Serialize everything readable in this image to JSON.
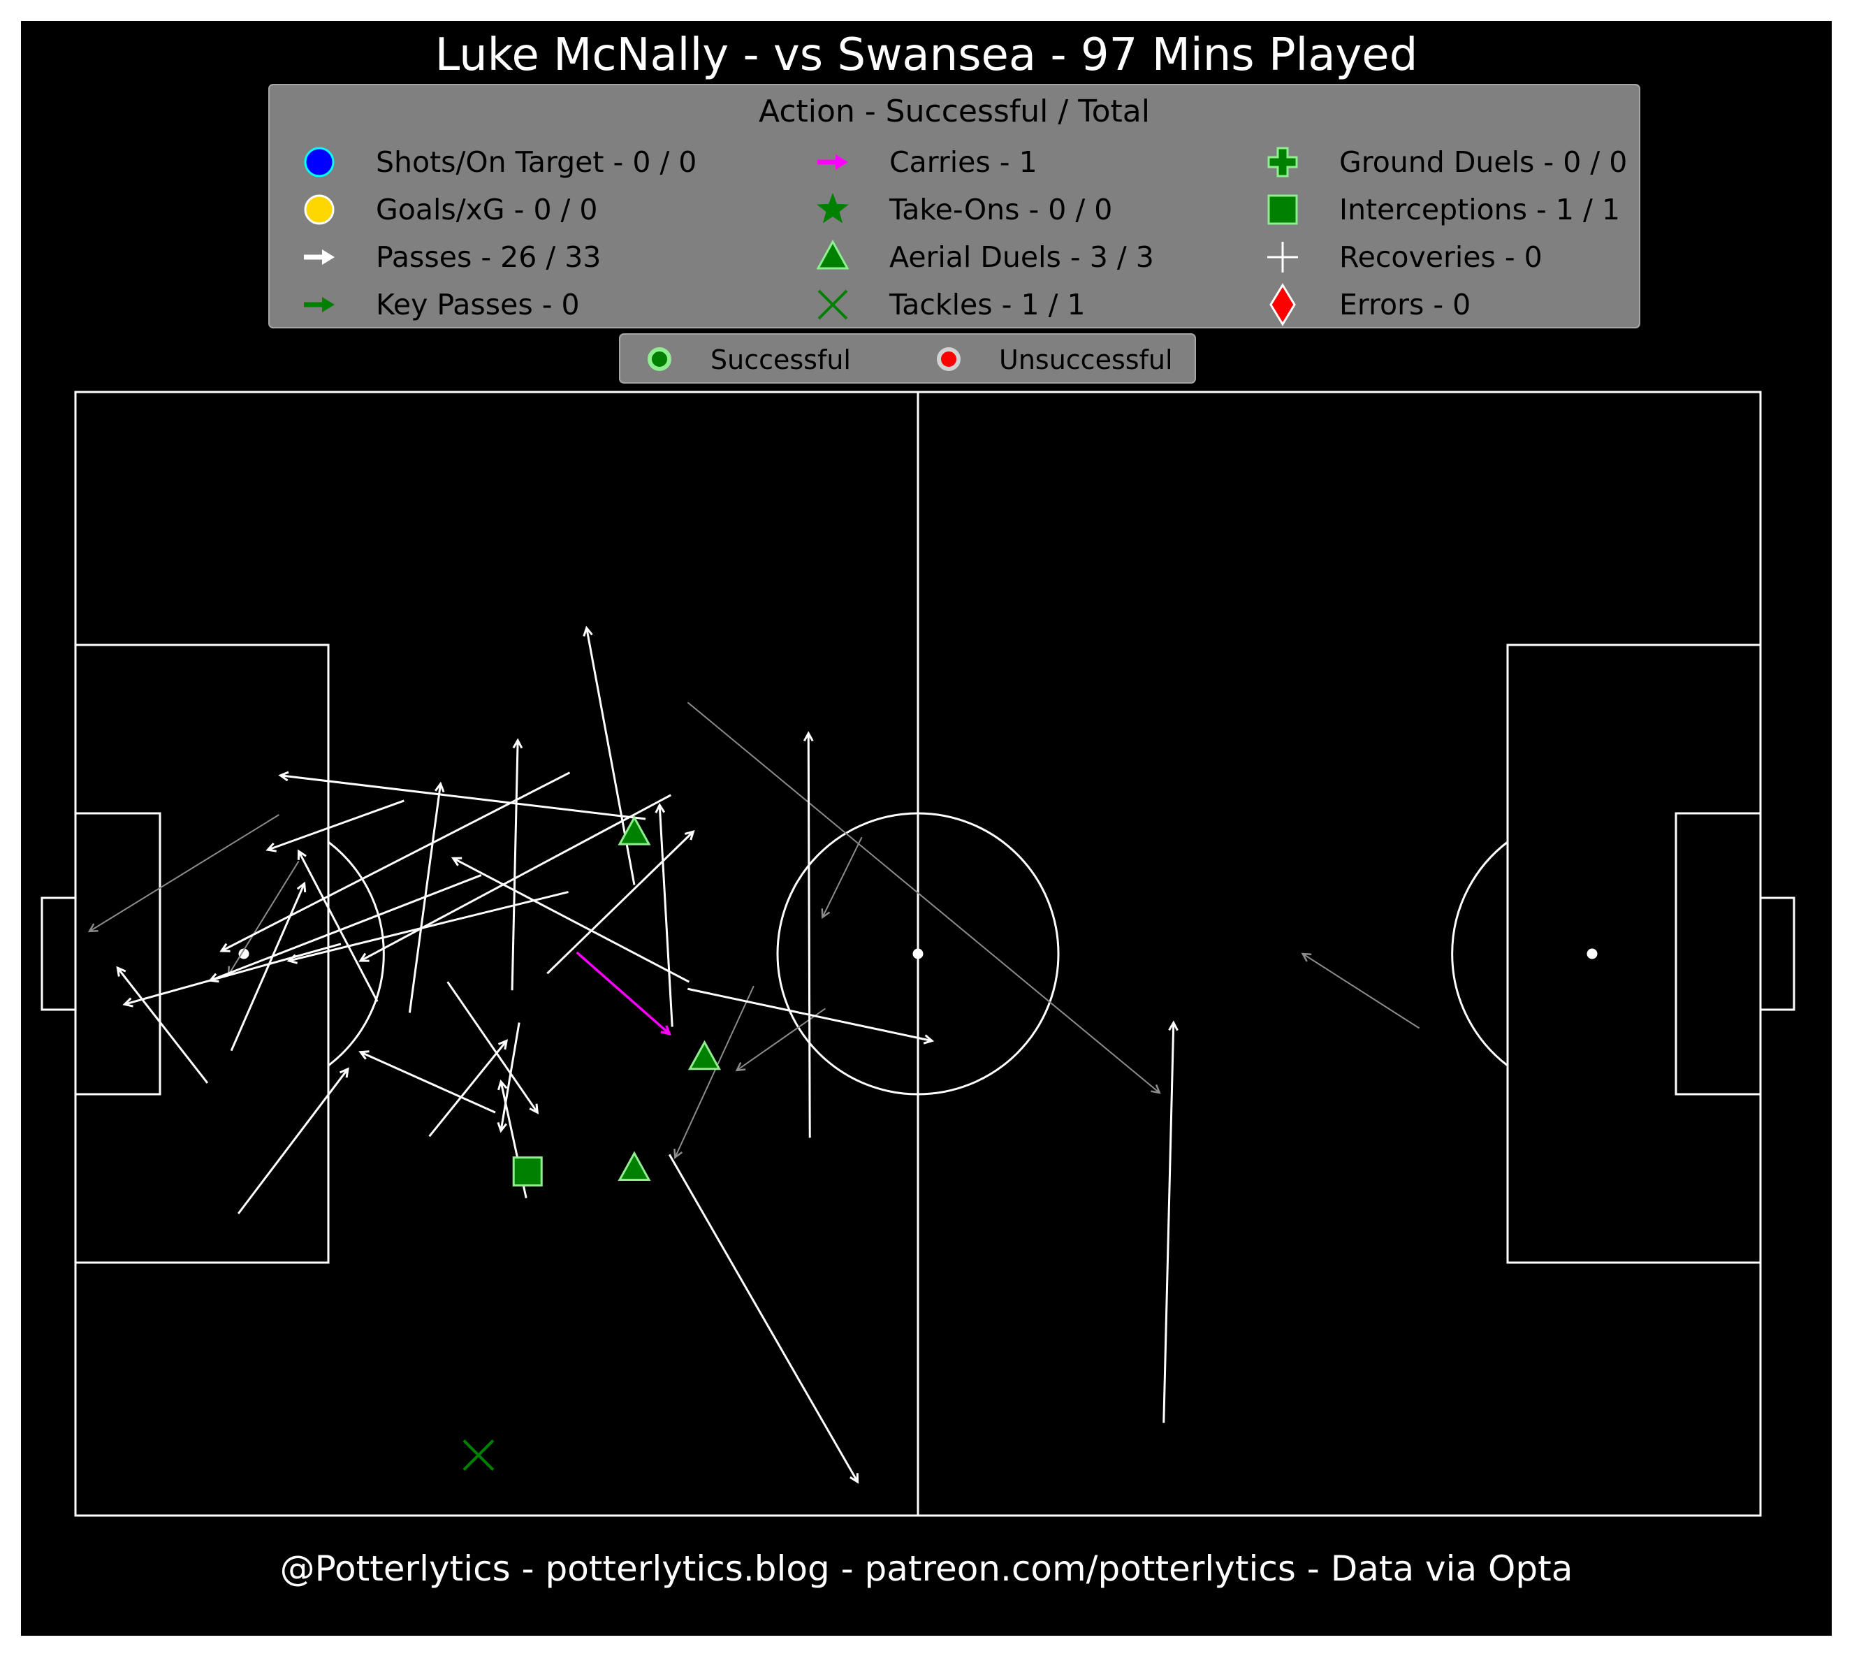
{
  "chart_data": {
    "type": "pitch-event-map",
    "title": "Luke McNally - vs Swansea - 97 Mins Played",
    "footer": "@Potterlytics - potterlytics.blog - patreon.com/potterlytics - Data via Opta",
    "pitch_length": 120,
    "pitch_width": 80,
    "colors": {
      "background": "#000000",
      "lines": "#ffffff",
      "legend_box": "#808080",
      "success_pass": "#ffffff",
      "fail_pass": "#8c8c8c",
      "carry": "#ff00ff",
      "marker_green": "#008000",
      "marker_edge": "#90ee90"
    },
    "legend": {
      "title": "Action - Successful / Total",
      "entries": [
        {
          "label": "Shots/On Target - 0 / 0",
          "icon": "circle-blue"
        },
        {
          "label": "Goals/xG - 0 / 0",
          "icon": "circle-gold"
        },
        {
          "label": "Passes - 26 / 33",
          "icon": "arrow-white"
        },
        {
          "label": "Key Passes - 0",
          "icon": "arrow-green"
        },
        {
          "label": "Carries - 1",
          "icon": "arrow-magenta"
        },
        {
          "label": "Take-Ons - 0 / 0",
          "icon": "star-green"
        },
        {
          "label": "Aerial Duels - 3 / 3",
          "icon": "triangle-green"
        },
        {
          "label": "Tackles - 1 / 1",
          "icon": "x-green"
        },
        {
          "label": "Ground Duels - 0 / 0",
          "icon": "plus-green"
        },
        {
          "label": "Interceptions - 1 / 1",
          "icon": "square-green"
        },
        {
          "label": "Recoveries - 0",
          "icon": "plus-white"
        },
        {
          "label": "Errors - 0",
          "icon": "diamond-red"
        }
      ]
    },
    "outcome_legend": {
      "success": "Successful",
      "fail": "Unsuccessful"
    },
    "passes_successful": [
      [
        42.3,
        25.7,
        55.7,
        2.4
      ],
      [
        77.5,
        6.6,
        78.2,
        35.1
      ],
      [
        52.3,
        26.9,
        52.2,
        55.7
      ],
      [
        33.6,
        38.6,
        44.0,
        48.7
      ],
      [
        42.4,
        51.3,
        20.3,
        39.5
      ],
      [
        43.7,
        38.0,
        26.9,
        46.8
      ],
      [
        39.8,
        44.9,
        36.4,
        63.2
      ],
      [
        40.6,
        49.6,
        14.6,
        52.7
      ],
      [
        31.1,
        37.4,
        31.5,
        55.2
      ],
      [
        23.4,
        50.9,
        13.7,
        47.4
      ],
      [
        29.9,
        28.7,
        20.3,
        33.0
      ],
      [
        35.1,
        44.4,
        15.2,
        39.5
      ],
      [
        23.8,
        35.8,
        26.0,
        52.1
      ],
      [
        11.1,
        33.1,
        16.3,
        45.0
      ],
      [
        35.2,
        52.9,
        10.4,
        40.2
      ],
      [
        21.5,
        36.6,
        15.9,
        47.3
      ],
      [
        28.9,
        45.6,
        9.6,
        38.1
      ],
      [
        18.9,
        40.7,
        3.5,
        36.4
      ],
      [
        9.4,
        30.8,
        3.0,
        39.0
      ],
      [
        42.5,
        34.8,
        41.6,
        50.6
      ],
      [
        43.6,
        37.5,
        61.0,
        33.8
      ],
      [
        31.6,
        35.1,
        30.3,
        27.4
      ],
      [
        32.1,
        22.6,
        30.3,
        30.9
      ],
      [
        11.6,
        21.5,
        19.4,
        31.8
      ],
      [
        25.2,
        27.0,
        30.7,
        33.8
      ],
      [
        26.5,
        38.0,
        32.9,
        28.7
      ]
    ],
    "passes_unsuccessful": [
      [
        95.7,
        34.7,
        87.4,
        40.0
      ],
      [
        43.6,
        57.9,
        77.2,
        30.1
      ],
      [
        14.5,
        49.9,
        1.0,
        41.6
      ],
      [
        15.9,
        46.6,
        10.9,
        38.5
      ],
      [
        56.0,
        48.3,
        53.2,
        42.6
      ],
      [
        53.4,
        36.1,
        47.1,
        31.7
      ],
      [
        48.3,
        37.7,
        42.7,
        25.5
      ]
    ],
    "carries": [
      [
        35.7,
        40.1,
        42.3,
        34.3
      ]
    ],
    "aerial_duels": [
      [
        39.8,
        48.6
      ],
      [
        44.8,
        32.6
      ],
      [
        39.8,
        24.7
      ]
    ],
    "interceptions": [
      [
        32.2,
        24.5
      ]
    ],
    "tackles": [
      [
        28.7,
        4.3
      ]
    ]
  }
}
